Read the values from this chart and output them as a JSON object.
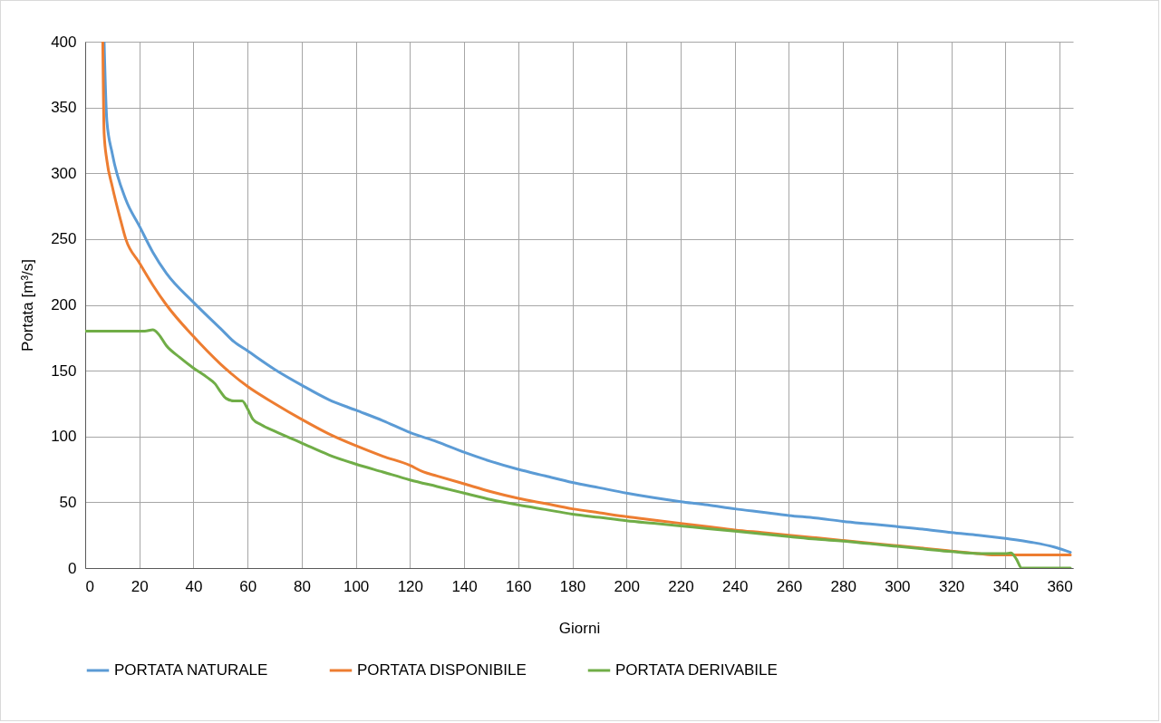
{
  "chart_data": {
    "type": "line",
    "xlabel": "Giorni",
    "ylabel": "Portata [m³/s]",
    "xlim": [
      0,
      365
    ],
    "xticks": [
      0,
      20,
      40,
      60,
      80,
      100,
      120,
      140,
      160,
      180,
      200,
      220,
      240,
      260,
      280,
      300,
      320,
      340,
      360
    ],
    "ylim": [
      0,
      400
    ],
    "yticks": [
      0,
      50,
      100,
      150,
      200,
      250,
      300,
      350,
      400
    ],
    "grid": true,
    "legend": "bottom",
    "marker": "none",
    "line_style": "solid",
    "series": [
      {
        "name": "PORTATA NATURALE",
        "color": "#5b9bd5",
        "x": [
          7,
          8,
          10,
          15,
          20,
          25,
          30,
          40,
          50,
          55,
          60,
          70,
          80,
          90,
          100,
          110,
          120,
          130,
          140,
          150,
          160,
          170,
          180,
          190,
          200,
          210,
          220,
          230,
          240,
          250,
          260,
          270,
          280,
          290,
          300,
          310,
          320,
          330,
          340,
          350,
          358,
          364
        ],
        "values": [
          400,
          340,
          315,
          280,
          260,
          240,
          224,
          202,
          182,
          172,
          165,
          151,
          139,
          128,
          120,
          112,
          103,
          96,
          88,
          81,
          75,
          70,
          65,
          61,
          57,
          53.5,
          50.5,
          48,
          45,
          42.5,
          40,
          38,
          35.5,
          33.5,
          31.5,
          29.5,
          27,
          25,
          22.5,
          19.5,
          16,
          12
        ]
      },
      {
        "name": "PORTATA DISPONIBILE",
        "color": "#ed7d31",
        "x": [
          6.5,
          7,
          8,
          10,
          13,
          15,
          20,
          25,
          30,
          40,
          50,
          60,
          70,
          80,
          90,
          100,
          110,
          120,
          125,
          130,
          140,
          150,
          160,
          170,
          180,
          190,
          200,
          210,
          220,
          230,
          240,
          250,
          260,
          270,
          280,
          290,
          300,
          310,
          320,
          330,
          335,
          364
        ],
        "values": [
          400,
          330,
          310,
          290,
          265,
          250,
          232,
          215,
          200,
          176,
          155,
          138,
          125,
          113,
          102,
          93,
          85,
          78,
          73,
          70,
          64,
          58,
          53,
          49,
          45,
          42,
          39,
          36.5,
          34,
          31.5,
          29,
          27,
          25,
          23,
          21,
          19,
          17,
          15,
          13,
          11,
          10,
          10
        ]
      },
      {
        "name": "PORTATA DERIVABILE",
        "color": "#70ad47",
        "x": [
          0,
          22,
          25,
          27,
          30,
          35,
          40,
          45,
          48,
          50,
          52,
          55,
          58,
          60,
          62,
          65,
          70,
          80,
          90,
          100,
          110,
          120,
          130,
          140,
          150,
          160,
          170,
          180,
          190,
          200,
          210,
          220,
          230,
          240,
          250,
          260,
          270,
          280,
          290,
          300,
          310,
          320,
          330,
          340,
          342,
          344,
          346,
          364
        ],
        "values": [
          180,
          180,
          181,
          178,
          169,
          160,
          152,
          145,
          140,
          134,
          129,
          127,
          127,
          121,
          113,
          109,
          104,
          95,
          86,
          79,
          73,
          67,
          62,
          57,
          52,
          48,
          44.5,
          41,
          38.5,
          36,
          34,
          32,
          30,
          28,
          26,
          24,
          22,
          20.5,
          18.5,
          16.5,
          14.5,
          12.5,
          11,
          11,
          11.5,
          7,
          0,
          0
        ]
      }
    ]
  }
}
